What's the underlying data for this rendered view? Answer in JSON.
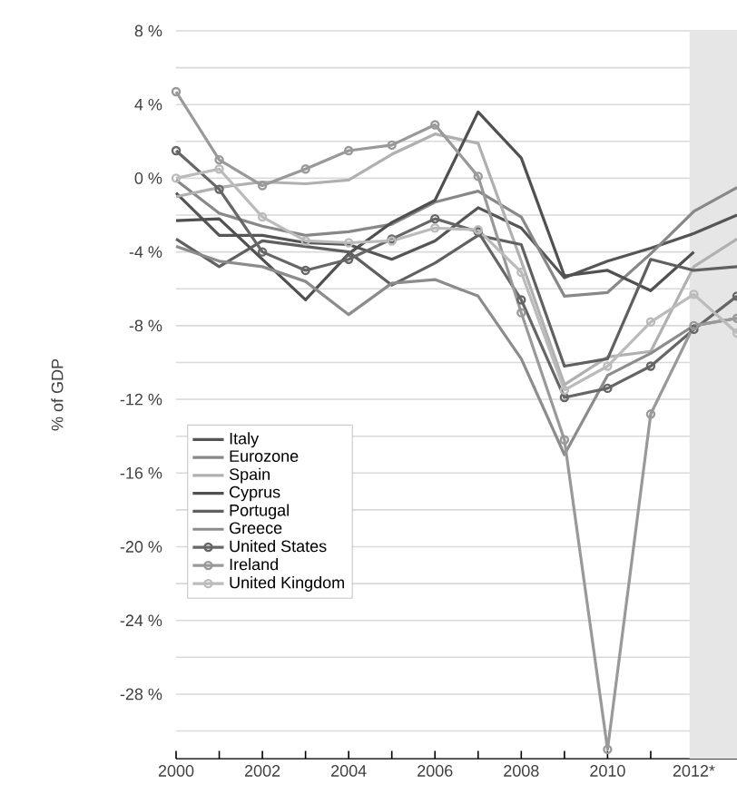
{
  "chart_data": {
    "type": "line",
    "ylabel": "% of GDP",
    "x": [
      2000,
      2001,
      2002,
      2003,
      2004,
      2005,
      2006,
      2007,
      2008,
      2009,
      2010,
      2011,
      2012,
      2013
    ],
    "xlim": [
      2000,
      2013
    ],
    "xticks": [
      2000,
      {
        "value": 2001,
        "label": null
      },
      2002,
      {
        "value": 2003,
        "label": null
      },
      2004,
      {
        "value": 2005,
        "label": null
      },
      2006,
      {
        "value": 2007,
        "label": null
      },
      2008,
      {
        "value": 2009,
        "label": null
      },
      2010,
      {
        "value": 2011,
        "label": null
      },
      {
        "value": 2012,
        "label": "2012*"
      },
      {
        "value": 2013,
        "label": null
      }
    ],
    "ylim": [
      -31.5,
      8
    ],
    "yticks": [
      {
        "value": -30,
        "label": null
      },
      {
        "value": -28,
        "label": "-28 %"
      },
      {
        "value": -26,
        "label": null
      },
      {
        "value": -24,
        "label": "-24 %"
      },
      {
        "value": -22,
        "label": null
      },
      {
        "value": -20,
        "label": "-20 %"
      },
      {
        "value": -18,
        "label": null
      },
      {
        "value": -16,
        "label": "-16 %"
      },
      {
        "value": -14,
        "label": null
      },
      {
        "value": -12,
        "label": "-12 %"
      },
      {
        "value": -10,
        "label": null
      },
      {
        "value": -8,
        "label": "-8 %"
      },
      {
        "value": -6,
        "label": null
      },
      {
        "value": -4,
        "label": "-4 %"
      },
      {
        "value": -2,
        "label": null
      },
      {
        "value": 0,
        "label": "0 %"
      },
      {
        "value": 2,
        "label": null
      },
      {
        "value": 4,
        "label": "4 %"
      },
      {
        "value": 6,
        "label": null
      },
      {
        "value": 8,
        "label": "8 %"
      }
    ],
    "grid": "y",
    "legend": "left",
    "bands": [
      {
        "axis": "x",
        "from": 2011.9,
        "to": 2013,
        "color": "#e6e6e6"
      }
    ],
    "series": [
      {
        "name": "Italy",
        "color": "#555555",
        "values": [
          -0.8,
          -3.1,
          -3.1,
          -3.5,
          -3.6,
          -4.4,
          -3.4,
          -1.6,
          -2.7,
          -5.4,
          -4.5,
          -3.8,
          -3.0,
          -2.0
        ]
      },
      {
        "name": "Eurozone",
        "color": "#888888",
        "values": [
          -0.1,
          -1.9,
          -2.6,
          -3.1,
          -2.9,
          -2.5,
          -1.3,
          -0.7,
          -2.1,
          -6.4,
          -6.2,
          -4.1,
          -1.8,
          -0.5
        ]
      },
      {
        "name": "Spain",
        "color": "#b0b0b0",
        "values": [
          -1.0,
          -0.5,
          -0.2,
          -0.3,
          -0.1,
          1.3,
          2.4,
          1.9,
          -4.5,
          -11.2,
          -9.7,
          -9.4,
          -4.8,
          -3.3
        ]
      },
      {
        "name": "Cyprus",
        "color": "#505050",
        "values": [
          -2.3,
          -2.2,
          -4.4,
          -6.6,
          -4.1,
          -2.4,
          -1.2,
          3.6,
          1.1,
          -5.3,
          -5.0,
          -6.1,
          -4.0,
          null
        ]
      },
      {
        "name": "Portugal",
        "color": "#606060",
        "values": [
          -3.3,
          -4.8,
          -3.4,
          -3.7,
          -4.0,
          -5.8,
          -4.6,
          -3.1,
          -3.6,
          -10.2,
          -9.8,
          -4.4,
          -5.0,
          -4.8
        ]
      },
      {
        "name": "Greece",
        "color": "#8c8c8c",
        "values": [
          -3.7,
          -4.5,
          -4.8,
          -5.6,
          -7.4,
          -5.7,
          -5.5,
          -6.4,
          -9.8,
          -15.0,
          -10.7,
          -9.5,
          -8.0,
          -7.6
        ]
      },
      {
        "name": "United States",
        "color": "#666666",
        "marker": "circle",
        "values": [
          1.5,
          -0.6,
          -4.0,
          -5.0,
          -4.4,
          -3.3,
          -2.2,
          -2.9,
          -6.6,
          -11.9,
          -11.4,
          -10.2,
          -8.2,
          -6.4
        ]
      },
      {
        "name": "Ireland",
        "color": "#999999",
        "marker": "circle",
        "values": [
          4.7,
          1.0,
          -0.4,
          0.5,
          1.5,
          1.8,
          2.9,
          0.1,
          -7.3,
          -14.2,
          -31.0,
          -12.8,
          -8.0,
          -7.6
        ]
      },
      {
        "name": "United Kingdom",
        "color": "#bbbbbb",
        "marker": "circle",
        "values": [
          0.0,
          0.5,
          -2.1,
          -3.4,
          -3.5,
          -3.4,
          -2.7,
          -2.8,
          -5.1,
          -11.5,
          -10.2,
          -7.8,
          -6.3,
          -8.4
        ]
      }
    ]
  }
}
